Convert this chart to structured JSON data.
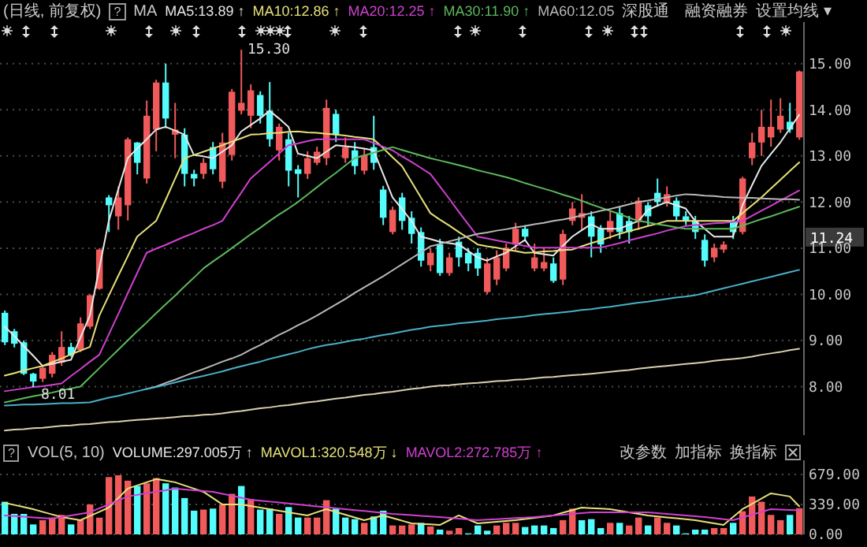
{
  "chart_data": [
    {
      "type": "candlestick",
      "grid": "y",
      "tick_labels": "y",
      "line_style": "solid",
      "marker": "none",
      "ylim": [
        6.95,
        15.9
      ],
      "yticks": [
        {
          "value": 8,
          "label": "8.00"
        },
        {
          "value": 9,
          "label": "9.00"
        },
        {
          "value": 10,
          "label": "10.00"
        },
        {
          "value": 11,
          "label": "11.00"
        },
        {
          "value": 12,
          "label": "12.00"
        },
        {
          "value": 13,
          "label": "13.00"
        },
        {
          "value": 14,
          "label": "14.00"
        },
        {
          "value": 15,
          "label": "15.00"
        }
      ],
      "annotations": [
        "(日线, 前复权)",
        "?",
        "MA",
        "深股通",
        "融资融券",
        "设置均线 ▾",
        "15.30",
        {
          "text": "8.01",
          "y": 8.01
        },
        {
          "text": "11.24",
          "y": 11.24
        }
      ],
      "categories": [
        null,
        null,
        null,
        null,
        null,
        null,
        null,
        null,
        null,
        null,
        null,
        null,
        null,
        null,
        null,
        null,
        null,
        null,
        null,
        null,
        null,
        null,
        null,
        null,
        null,
        null,
        null,
        null,
        null,
        null,
        null,
        null,
        null,
        null,
        null,
        null,
        null,
        null,
        null,
        null,
        null,
        null,
        null,
        null,
        null,
        null,
        null,
        null,
        null,
        null,
        null,
        null,
        null,
        null,
        null,
        null,
        null,
        null,
        null,
        null,
        null,
        null,
        null,
        null,
        null,
        null,
        null,
        null,
        null,
        null,
        null,
        null,
        null,
        null,
        null,
        null,
        null,
        null,
        null,
        null,
        null,
        null,
        null,
        null,
        null
      ],
      "ohlc": [
        [
          9.6,
          9.65,
          8.9,
          8.96
        ],
        [
          9.2,
          9.25,
          8.85,
          8.93
        ],
        [
          8.96,
          9.0,
          8.25,
          8.28
        ],
        [
          8.28,
          8.3,
          8.01,
          8.11
        ],
        [
          8.17,
          8.45,
          8.1,
          8.41
        ],
        [
          8.28,
          8.75,
          8.2,
          8.69
        ],
        [
          8.52,
          9.2,
          8.45,
          8.86
        ],
        [
          8.86,
          8.95,
          8.65,
          8.69
        ],
        [
          8.79,
          9.5,
          8.75,
          9.37
        ],
        [
          9.3,
          10.0,
          9.25,
          9.98
        ],
        [
          10.12,
          11.0,
          10.1,
          10.97
        ],
        [
          12.1,
          12.15,
          11.35,
          11.93
        ],
        [
          11.69,
          12.34,
          11.4,
          12.1
        ],
        [
          11.93,
          13.4,
          11.6,
          13.36
        ],
        [
          13.29,
          13.3,
          12.6,
          12.85
        ],
        [
          12.51,
          14.2,
          12.4,
          13.87
        ],
        [
          13.57,
          14.65,
          13.1,
          14.59
        ],
        [
          14.59,
          15.0,
          13.6,
          13.81
        ],
        [
          13.46,
          14.15,
          12.95,
          13.57
        ],
        [
          13.46,
          13.6,
          12.34,
          12.61
        ],
        [
          12.61,
          12.7,
          12.34,
          12.51
        ],
        [
          12.61,
          12.95,
          12.5,
          12.85
        ],
        [
          13.19,
          13.3,
          12.6,
          12.71
        ],
        [
          12.44,
          13.5,
          12.3,
          13.29
        ],
        [
          13.02,
          14.45,
          12.9,
          14.39
        ],
        [
          13.98,
          15.3,
          13.9,
          14.15
        ],
        [
          13.87,
          14.55,
          13.6,
          14.42
        ],
        [
          14.32,
          14.4,
          13.7,
          13.87
        ],
        [
          13.98,
          14.6,
          13.2,
          13.36
        ],
        [
          13.12,
          13.7,
          12.9,
          13.63
        ],
        [
          13.36,
          13.5,
          12.34,
          12.68
        ],
        [
          12.71,
          12.8,
          12.1,
          12.61
        ],
        [
          12.61,
          13.1,
          12.5,
          12.95
        ],
        [
          12.85,
          13.2,
          12.8,
          13.09
        ],
        [
          12.95,
          14.22,
          12.8,
          14.04
        ],
        [
          13.91,
          14.0,
          13.3,
          13.46
        ],
        [
          12.95,
          13.4,
          12.85,
          13.19
        ],
        [
          13.12,
          13.3,
          12.6,
          12.78
        ],
        [
          12.68,
          13.15,
          12.6,
          13.02
        ],
        [
          13.19,
          13.87,
          12.7,
          12.85
        ],
        [
          12.27,
          12.35,
          11.5,
          11.66
        ],
        [
          11.35,
          11.9,
          11.3,
          11.83
        ],
        [
          12.1,
          12.2,
          11.4,
          11.59
        ],
        [
          11.66,
          11.8,
          11.1,
          11.31
        ],
        [
          11.35,
          11.45,
          10.6,
          10.73
        ],
        [
          10.63,
          11.0,
          10.5,
          10.9
        ],
        [
          11.08,
          11.2,
          10.4,
          10.46
        ],
        [
          10.46,
          10.9,
          10.4,
          10.8
        ],
        [
          11.14,
          11.25,
          10.6,
          10.8
        ],
        [
          10.9,
          11.0,
          10.5,
          10.67
        ],
        [
          10.9,
          11.0,
          10.4,
          10.56
        ],
        [
          10.05,
          10.8,
          10.0,
          10.67
        ],
        [
          10.32,
          10.95,
          10.2,
          10.8
        ],
        [
          10.56,
          11.1,
          10.5,
          11.01
        ],
        [
          11.08,
          11.55,
          10.95,
          11.42
        ],
        [
          11.42,
          11.5,
          11.15,
          11.25
        ],
        [
          10.56,
          11.1,
          10.5,
          10.8
        ],
        [
          10.56,
          11.0,
          10.5,
          10.7
        ],
        [
          10.67,
          10.8,
          10.25,
          10.29
        ],
        [
          10.32,
          11.4,
          10.2,
          11.31
        ],
        [
          11.59,
          12.0,
          11.5,
          11.86
        ],
        [
          11.66,
          12.17,
          11.4,
          11.76
        ],
        [
          11.69,
          11.8,
          10.8,
          11.25
        ],
        [
          11.42,
          11.5,
          10.9,
          11.08
        ],
        [
          11.35,
          11.8,
          11.2,
          11.59
        ],
        [
          11.76,
          11.9,
          11.2,
          11.35
        ],
        [
          11.59,
          11.7,
          11.1,
          11.35
        ],
        [
          11.59,
          12.1,
          11.4,
          12.03
        ],
        [
          11.93,
          12.0,
          11.5,
          11.69
        ],
        [
          12.2,
          12.51,
          11.9,
          12.0
        ],
        [
          12.0,
          12.34,
          11.9,
          12.17
        ],
        [
          12.03,
          12.1,
          11.6,
          11.69
        ],
        [
          11.69,
          11.8,
          11.5,
          11.59
        ],
        [
          11.59,
          11.7,
          11.2,
          11.35
        ],
        [
          11.18,
          11.3,
          10.6,
          10.73
        ],
        [
          10.8,
          11.1,
          10.7,
          11.01
        ],
        [
          10.97,
          11.15,
          10.9,
          11.08
        ],
        [
          11.59,
          11.7,
          11.2,
          11.35
        ],
        [
          11.35,
          12.55,
          11.3,
          12.51
        ],
        [
          12.95,
          13.5,
          12.8,
          13.29
        ],
        [
          13.29,
          14.0,
          13.0,
          13.63
        ],
        [
          13.4,
          14.22,
          13.2,
          13.63
        ],
        [
          13.57,
          14.25,
          13.5,
          13.87
        ],
        [
          13.74,
          14.15,
          13.5,
          13.57
        ],
        [
          13.4,
          14.85,
          13.35,
          14.83
        ]
      ],
      "colors": [
        "#54fcfc",
        "#54fcfc",
        "#54fcfc",
        "#54fcfc",
        "#f05a5a",
        "#f05a5a",
        "#f05a5a",
        "#54fcfc",
        "#f05a5a",
        "#f05a5a",
        "#f05a5a",
        "#54fcfc",
        "#f05a5a",
        "#f05a5a",
        "#54fcfc",
        "#f05a5a",
        "#f05a5a",
        "#54fcfc",
        "#f05a5a",
        "#54fcfc",
        "#54fcfc",
        "#f05a5a",
        "#54fcfc",
        "#f05a5a",
        "#f05a5a",
        "#f05a5a",
        "#f05a5a",
        "#54fcfc",
        "#54fcfc",
        "#f05a5a",
        "#54fcfc",
        "#54fcfc",
        "#f05a5a",
        "#f05a5a",
        "#f05a5a",
        "#54fcfc",
        "#f05a5a",
        "#54fcfc",
        "#f05a5a",
        "#54fcfc",
        "#54fcfc",
        "#f05a5a",
        "#54fcfc",
        "#54fcfc",
        "#54fcfc",
        "#f05a5a",
        "#54fcfc",
        "#f05a5a",
        "#54fcfc",
        "#54fcfc",
        "#54fcfc",
        "#f05a5a",
        "#f05a5a",
        "#f05a5a",
        "#f05a5a",
        "#54fcfc",
        "#f05a5a",
        "#f05a5a",
        "#54fcfc",
        "#f05a5a",
        "#f05a5a",
        "#f05a5a",
        "#54fcfc",
        "#54fcfc",
        "#f05a5a",
        "#54fcfc",
        "#54fcfc",
        "#f05a5a",
        "#54fcfc",
        "#54fcfc",
        "#f05a5a",
        "#54fcfc",
        "#54fcfc",
        "#54fcfc",
        "#54fcfc",
        "#f05a5a",
        "#f05a5a",
        "#54fcfc",
        "#f05a5a",
        "#f05a5a",
        "#f05a5a",
        "#f05a5a",
        "#f05a5a",
        "#54fcfc",
        "#f05a5a"
      ],
      "series": [
        {
          "type": "line",
          "name": "MA5:13.89 ↑",
          "color": "#e8e8e8",
          "values": [
            9.3,
            9.1,
            8.88,
            8.67,
            8.45,
            8.49,
            8.54,
            8.58,
            9.06,
            9.54,
            10.57,
            11.59,
            12.27,
            12.95,
            13.16,
            13.36,
            13.57,
            13.63,
            13.55,
            13.46,
            13.02,
            12.99,
            12.95,
            13.09,
            13.23,
            13.53,
            13.67,
            13.81,
            13.98,
            13.81,
            13.63,
            13.05,
            13.0,
            12.95,
            13.09,
            13.23,
            13.21,
            13.19,
            13.16,
            13.12,
            12.61,
            12.1,
            11.85,
            11.59,
            11.25,
            11.2,
            11.14,
            11.11,
            11.08,
            10.94,
            10.8,
            10.73,
            10.82,
            10.9,
            11.04,
            11.18,
            10.9,
            10.87,
            10.84,
            11.05,
            11.25,
            11.39,
            11.52,
            11.42,
            11.42,
            11.42,
            11.51,
            11.59,
            11.83,
            11.92,
            12.0,
            11.93,
            11.86,
            11.59,
            11.42,
            11.25,
            11.25,
            11.25,
            11.93,
            12.36,
            12.78,
            13.04,
            13.29,
            13.59,
            13.89
          ]
        },
        {
          "type": "line",
          "name": "MA10:12.86 ↑",
          "color": "#e6e07a",
          "values": [
            8.24,
            8.29,
            8.35,
            8.4,
            8.45,
            8.53,
            8.61,
            8.7,
            8.78,
            8.86,
            9.54,
            9.97,
            10.4,
            10.82,
            11.25,
            11.42,
            11.59,
            12.04,
            12.5,
            12.95,
            13.02,
            13.09,
            13.16,
            13.23,
            13.31,
            13.38,
            13.46,
            13.47,
            13.49,
            13.5,
            13.52,
            13.53,
            13.51,
            13.5,
            13.48,
            13.46,
            13.44,
            13.41,
            13.39,
            13.36,
            13.17,
            12.97,
            12.78,
            12.44,
            12.1,
            11.76,
            11.62,
            11.49,
            11.35,
            11.22,
            11.08,
            11.04,
            11.01,
            10.97,
            10.94,
            10.9,
            10.91,
            10.93,
            10.94,
            10.96,
            10.97,
            11.04,
            11.11,
            11.17,
            11.24,
            11.31,
            11.37,
            11.42,
            11.48,
            11.53,
            11.59,
            11.59,
            11.59,
            11.59,
            11.59,
            11.59,
            11.59,
            11.59,
            11.76,
            11.93,
            12.1,
            12.29,
            12.48,
            12.67,
            12.86
          ]
        },
        {
          "type": "line",
          "name": "MA20:12.25 ↑",
          "color": "#d040d0",
          "values": [
            7.9,
            7.93,
            7.96,
            7.99,
            8.01,
            8.04,
            8.07,
            8.23,
            8.38,
            8.54,
            8.69,
            9.13,
            9.57,
            10.02,
            10.46,
            10.9,
            10.99,
            11.07,
            11.16,
            11.25,
            11.33,
            11.42,
            11.5,
            11.59,
            11.9,
            12.2,
            12.51,
            12.69,
            12.87,
            13.05,
            13.23,
            13.27,
            13.32,
            13.36,
            13.36,
            13.36,
            13.36,
            13.36,
            13.36,
            13.28,
            13.2,
            13.12,
            12.99,
            12.87,
            12.74,
            12.61,
            12.34,
            12.07,
            11.79,
            11.52,
            11.25,
            11.21,
            11.17,
            11.13,
            11.09,
            11.05,
            11.01,
            11.01,
            11.01,
            11.01,
            11.01,
            11.01,
            11.01,
            11.01,
            11.06,
            11.11,
            11.17,
            11.22,
            11.27,
            11.32,
            11.38,
            11.43,
            11.48,
            11.5,
            11.52,
            11.54,
            11.55,
            11.57,
            11.59,
            11.7,
            11.81,
            11.92,
            12.03,
            12.14,
            12.25
          ]
        },
        {
          "type": "line",
          "name": "MA30:11.90 ↑",
          "color": "#5cb85c",
          "values": [
            7.66,
            7.7,
            7.75,
            7.79,
            7.83,
            7.87,
            7.92,
            7.96,
            8.0,
            8.2,
            8.4,
            8.6,
            8.8,
            9.0,
            9.2,
            9.39,
            9.59,
            9.78,
            9.97,
            10.17,
            10.36,
            10.56,
            10.71,
            10.85,
            11.0,
            11.15,
            11.3,
            11.44,
            11.59,
            11.73,
            11.86,
            12.0,
            12.16,
            12.32,
            12.48,
            12.63,
            12.79,
            12.95,
            13.01,
            13.07,
            13.13,
            13.19,
            13.13,
            13.07,
            13.01,
            12.95,
            12.9,
            12.85,
            12.8,
            12.75,
            12.69,
            12.64,
            12.59,
            12.54,
            12.48,
            12.41,
            12.35,
            12.29,
            12.23,
            12.16,
            12.1,
            12.03,
            11.95,
            11.88,
            11.81,
            11.74,
            11.66,
            11.59,
            11.56,
            11.52,
            11.49,
            11.45,
            11.42,
            11.42,
            11.42,
            11.42,
            11.42,
            11.42,
            11.49,
            11.56,
            11.63,
            11.69,
            11.76,
            11.83,
            11.9
          ]
        },
        {
          "type": "line",
          "name": "MA60:12.05",
          "color": "#b8b8b8",
          "values": [
            null,
            null,
            null,
            null,
            null,
            null,
            null,
            null,
            null,
            null,
            null,
            null,
            null,
            null,
            null,
            7.95,
            8.0,
            8.08,
            8.15,
            8.23,
            8.31,
            8.38,
            8.46,
            8.54,
            8.61,
            8.69,
            8.8,
            8.9,
            9.01,
            9.12,
            9.22,
            9.33,
            9.43,
            9.54,
            9.66,
            9.78,
            9.9,
            10.03,
            10.15,
            10.27,
            10.39,
            10.52,
            10.65,
            10.78,
            10.91,
            11.04,
            11.09,
            11.15,
            11.2,
            11.26,
            11.31,
            11.34,
            11.38,
            11.41,
            11.45,
            11.48,
            11.52,
            11.55,
            11.59,
            11.62,
            11.66,
            11.71,
            11.76,
            11.81,
            11.85,
            11.9,
            11.95,
            12.0,
            12.03,
            12.07,
            12.1,
            12.14,
            12.17,
            12.16,
            12.14,
            12.13,
            12.11,
            12.1,
            12.09,
            12.09,
            12.08,
            12.07,
            12.06,
            12.06,
            12.05
          ]
        },
        {
          "type": "line",
          "color": "#4ab0c8",
          "values": [
            7.59,
            7.6,
            7.61,
            7.61,
            7.62,
            7.63,
            7.64,
            7.64,
            7.65,
            7.66,
            7.71,
            7.76,
            7.8,
            7.85,
            7.9,
            7.95,
            7.99,
            8.04,
            8.09,
            8.14,
            8.19,
            8.23,
            8.28,
            8.33,
            8.39,
            8.44,
            8.49,
            8.54,
            8.6,
            8.65,
            8.7,
            8.75,
            8.81,
            8.86,
            8.9,
            8.93,
            8.97,
            9.01,
            9.04,
            9.08,
            9.12,
            9.15,
            9.19,
            9.23,
            9.26,
            9.3,
            9.32,
            9.34,
            9.37,
            9.39,
            9.41,
            9.43,
            9.46,
            9.48,
            9.5,
            9.52,
            9.55,
            9.57,
            9.59,
            9.61,
            9.63,
            9.66,
            9.68,
            9.71,
            9.73,
            9.76,
            9.79,
            9.82,
            9.84,
            9.87,
            9.9,
            9.93,
            9.95,
            9.98,
            10.03,
            10.08,
            10.13,
            10.18,
            10.23,
            10.28,
            10.33,
            10.38,
            10.43,
            10.48,
            10.53
          ]
        },
        {
          "type": "line",
          "color": "#d8d0b0",
          "values": [
            7.05,
            7.07,
            7.08,
            7.1,
            7.11,
            7.13,
            7.15,
            7.16,
            7.18,
            7.19,
            7.21,
            7.23,
            7.24,
            7.26,
            7.28,
            7.29,
            7.31,
            7.32,
            7.34,
            7.36,
            7.37,
            7.39,
            7.4,
            7.42,
            7.45,
            7.47,
            7.5,
            7.53,
            7.55,
            7.58,
            7.6,
            7.63,
            7.66,
            7.68,
            7.71,
            7.74,
            7.76,
            7.79,
            7.82,
            7.84,
            7.87,
            7.89,
            7.92,
            7.95,
            7.97,
            8.0,
            8.02,
            8.03,
            8.05,
            8.07,
            8.08,
            8.1,
            8.12,
            8.13,
            8.15,
            8.16,
            8.18,
            8.2,
            8.21,
            8.23,
            8.25,
            8.26,
            8.28,
            8.3,
            8.32,
            8.34,
            8.36,
            8.39,
            8.41,
            8.43,
            8.45,
            8.47,
            8.49,
            8.51,
            8.53,
            8.56,
            8.58,
            8.6,
            8.62,
            8.65,
            8.69,
            8.72,
            8.75,
            8.79,
            8.82
          ]
        }
      ]
    },
    {
      "type": "bar",
      "grid": "y",
      "tick_labels": "y",
      "line_style": "solid",
      "marker": "none",
      "ylim": [
        0,
        840
      ],
      "yticks": [
        {
          "value": 0,
          "label": "0.00"
        },
        {
          "value": 339,
          "label": "339.00"
        },
        {
          "value": 679,
          "label": "679.00"
        }
      ],
      "annotations": [
        "?",
        "VOL(5, 10)",
        "改参数",
        "加指标",
        "换指标"
      ],
      "categories": [
        null,
        null,
        null,
        null,
        null,
        null,
        null,
        null,
        null,
        null,
        null,
        null,
        null,
        null,
        null,
        null,
        null,
        null,
        null,
        null,
        null,
        null,
        null,
        null,
        null,
        null,
        null,
        null,
        null,
        null,
        null,
        null,
        null,
        null,
        null,
        null,
        null,
        null,
        null,
        null,
        null,
        null,
        null,
        null,
        null,
        null,
        null,
        null,
        null,
        null,
        null,
        null,
        null,
        null,
        null,
        null,
        null,
        null,
        null,
        null,
        null,
        null,
        null,
        null,
        null,
        null,
        null,
        null,
        null,
        null,
        null,
        null,
        null,
        null,
        null,
        null,
        null,
        null,
        null,
        null,
        null,
        null,
        null,
        null,
        null
      ],
      "series": [
        {
          "type": "bar",
          "name": "VOLUME:297.005万 ↑",
          "color": "#e8e8e8",
          "values": [
            370,
            233,
            233,
            113,
            161,
            191,
            221,
            113,
            161,
            340,
            191,
            650,
            670,
            609,
            549,
            579,
            639,
            579,
            531,
            412,
            269,
            281,
            293,
            340,
            460,
            549,
            400,
            281,
            293,
            233,
            310,
            191,
            191,
            191,
            388,
            293,
            191,
            173,
            131,
            203,
            269,
            101,
            101,
            113,
            131,
            90,
            54,
            42,
            72,
            12,
            101,
            42,
            101,
            131,
            131,
            84,
            101,
            101,
            72,
            161,
            292,
            161,
            173,
            72,
            131,
            131,
            101,
            191,
            101,
            191,
            131,
            101,
            12,
            54,
            54,
            72,
            72,
            131,
            263,
            430,
            370,
            221,
            161,
            221,
            297
          ],
          "colors": [
            "#54fcfc",
            "#54fcfc",
            "#54fcfc",
            "#54fcfc",
            "#f05a5a",
            "#f05a5a",
            "#f05a5a",
            "#54fcfc",
            "#f05a5a",
            "#f05a5a",
            "#f05a5a",
            "#f05a5a",
            "#f05a5a",
            "#f05a5a",
            "#54fcfc",
            "#f05a5a",
            "#f05a5a",
            "#54fcfc",
            "#54fcfc",
            "#54fcfc",
            "#54fcfc",
            "#f05a5a",
            "#54fcfc",
            "#f05a5a",
            "#f05a5a",
            "#54fcfc",
            "#f05a5a",
            "#54fcfc",
            "#54fcfc",
            "#f05a5a",
            "#54fcfc",
            "#54fcfc",
            "#f05a5a",
            "#f05a5a",
            "#f05a5a",
            "#54fcfc",
            "#54fcfc",
            "#54fcfc",
            "#f05a5a",
            "#54fcfc",
            "#54fcfc",
            "#f05a5a",
            "#f05a5a",
            "#f05a5a",
            "#54fcfc",
            "#f05a5a",
            "#54fcfc",
            "#f05a5a",
            "#f05a5a",
            "#54fcfc",
            "#54fcfc",
            "#54fcfc",
            "#f05a5a",
            "#f05a5a",
            "#f05a5a",
            "#54fcfc",
            "#54fcfc",
            "#54fcfc",
            "#54fcfc",
            "#f05a5a",
            "#f05a5a",
            "#54fcfc",
            "#54fcfc",
            "#54fcfc",
            "#f05a5a",
            "#54fcfc",
            "#f05a5a",
            "#f05a5a",
            "#54fcfc",
            "#f05a5a",
            "#f05a5a",
            "#54fcfc",
            "#54fcfc",
            "#54fcfc",
            "#54fcfc",
            "#f05a5a",
            "#f05a5a",
            "#54fcfc",
            "#f05a5a",
            "#f05a5a",
            "#f05a5a",
            "#f05a5a",
            "#f05a5a",
            "#54fcfc",
            "#f05a5a"
          ]
        },
        {
          "type": "line",
          "name": "MAVOL1:320.548万 ↓",
          "color": "#e6e07a",
          "values": [
            358,
            334,
            310,
            286,
            256,
            227,
            197,
            179,
            161,
            209,
            256,
            304,
            412,
            519,
            555,
            591,
            627,
            609,
            591,
            555,
            519,
            483,
            412,
            340,
            340,
            340,
            322,
            304,
            286,
            268,
            251,
            233,
            215,
            251,
            286,
            255,
            224,
            192,
            161,
            188,
            215,
            185,
            155,
            125,
            119,
            113,
            107,
            161,
            215,
            170,
            125,
            134,
            143,
            152,
            161,
            175,
            188,
            202,
            215,
            245,
            274,
            304,
            298,
            292,
            286,
            268,
            251,
            233,
            215,
            204,
            193,
            183,
            172,
            161,
            143,
            125,
            107,
            197,
            286,
            346,
            405,
            465,
            448,
            430,
            320
          ]
        },
        {
          "type": "line",
          "name": "MAVOL2:272.785万 ↑",
          "color": "#d040d0",
          "values": [
            215,
            208,
            201,
            193,
            186,
            179,
            197,
            215,
            233,
            251,
            296,
            340,
            385,
            430,
            448,
            466,
            483,
            501,
            519,
            510,
            501,
            492,
            483,
            461,
            439,
            416,
            394,
            383,
            372,
            362,
            351,
            340,
            329,
            318,
            308,
            297,
            286,
            275,
            265,
            254,
            244,
            233,
            226,
            219,
            211,
            204,
            197,
            188,
            179,
            170,
            161,
            167,
            173,
            179,
            185,
            191,
            197,
            206,
            215,
            224,
            233,
            242,
            251,
            251,
            251,
            251,
            251,
            251,
            251,
            242,
            233,
            224,
            215,
            206,
            197,
            185,
            173,
            161,
            192,
            224,
            255,
            286,
            282,
            277,
            273
          ]
        }
      ]
    }
  ]
}
